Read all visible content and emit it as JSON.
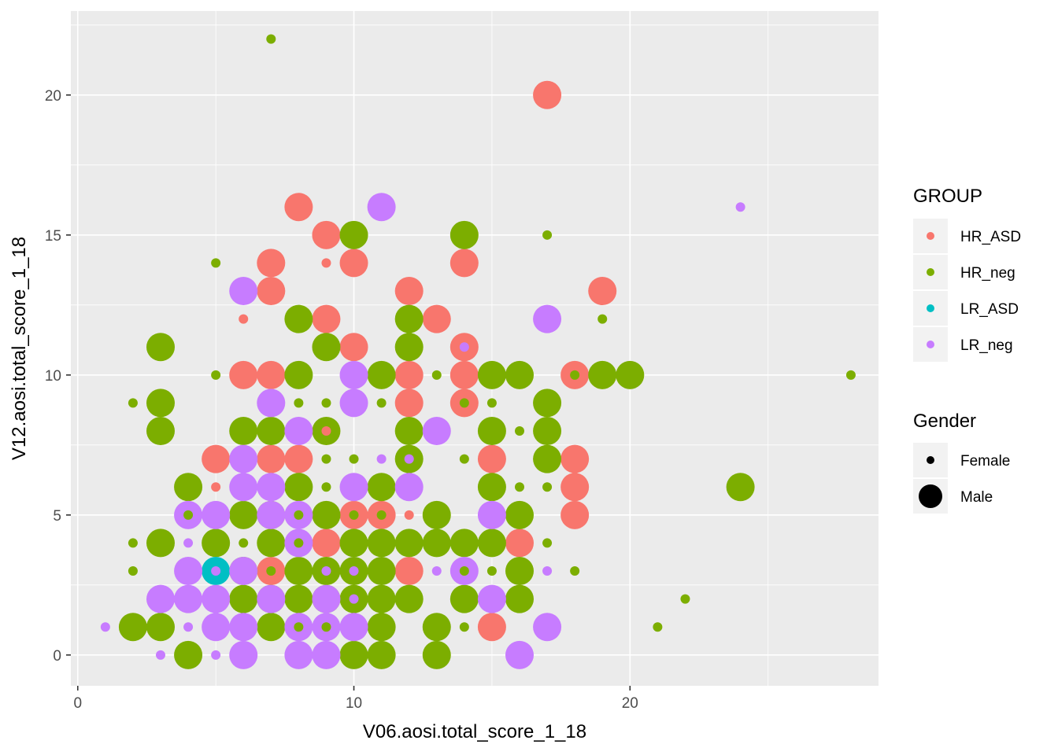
{
  "chart_data": {
    "type": "scatter",
    "xlabel": "V06.aosi.total_score_1_18",
    "ylabel": "V12.aosi.total_score_1_18",
    "xlim": [
      -0.25,
      29
    ],
    "ylim": [
      -1.1,
      23
    ],
    "x_ticks": [
      0,
      10,
      20
    ],
    "y_ticks": [
      0,
      5,
      10,
      15,
      20
    ],
    "grid": true,
    "colors": {
      "HR_ASD": "#F8766D",
      "HR_neg": "#7CAE00",
      "LR_ASD": "#00BFC4",
      "LR_neg": "#C77CFF"
    },
    "legend": {
      "position": "right",
      "group_title": "GROUP",
      "group_entries": [
        "HR_ASD",
        "HR_neg",
        "LR_ASD",
        "LR_neg"
      ],
      "size_title": "Gender",
      "size_entries": [
        "Female",
        "Male"
      ]
    },
    "series": [
      {
        "name": "HR_ASD",
        "points": [
          {
            "x": 17,
            "y": 20,
            "g": "Male"
          },
          {
            "x": 8,
            "y": 16,
            "g": "Male"
          },
          {
            "x": 9,
            "y": 15,
            "g": "Male"
          },
          {
            "x": 7,
            "y": 14,
            "g": "Male"
          },
          {
            "x": 10,
            "y": 14,
            "g": "Male"
          },
          {
            "x": 14,
            "y": 14,
            "g": "Male"
          },
          {
            "x": 9,
            "y": 14,
            "g": "Female"
          },
          {
            "x": 7,
            "y": 13,
            "g": "Male"
          },
          {
            "x": 12,
            "y": 13,
            "g": "Male"
          },
          {
            "x": 19,
            "y": 13,
            "g": "Male"
          },
          {
            "x": 6,
            "y": 12,
            "g": "Female"
          },
          {
            "x": 9,
            "y": 12,
            "g": "Male"
          },
          {
            "x": 13,
            "y": 12,
            "g": "Male"
          },
          {
            "x": 10,
            "y": 11,
            "g": "Male"
          },
          {
            "x": 14,
            "y": 11,
            "g": "Male"
          },
          {
            "x": 6,
            "y": 10,
            "g": "Male"
          },
          {
            "x": 7,
            "y": 10,
            "g": "Male"
          },
          {
            "x": 12,
            "y": 10,
            "g": "Male"
          },
          {
            "x": 14,
            "y": 10,
            "g": "Male"
          },
          {
            "x": 18,
            "y": 10,
            "g": "Male"
          },
          {
            "x": 12,
            "y": 9,
            "g": "Male"
          },
          {
            "x": 14,
            "y": 9,
            "g": "Male"
          },
          {
            "x": 9,
            "y": 8,
            "g": "Female"
          },
          {
            "x": 5,
            "y": 7,
            "g": "Male"
          },
          {
            "x": 7,
            "y": 7,
            "g": "Male"
          },
          {
            "x": 8,
            "y": 7,
            "g": "Male"
          },
          {
            "x": 15,
            "y": 7,
            "g": "Male"
          },
          {
            "x": 18,
            "y": 7,
            "g": "Male"
          },
          {
            "x": 5,
            "y": 6,
            "g": "Female"
          },
          {
            "x": 18,
            "y": 6,
            "g": "Male"
          },
          {
            "x": 10,
            "y": 5,
            "g": "Male"
          },
          {
            "x": 11,
            "y": 5,
            "g": "Male"
          },
          {
            "x": 12,
            "y": 5,
            "g": "Female"
          },
          {
            "x": 18,
            "y": 5,
            "g": "Male"
          },
          {
            "x": 9,
            "y": 4,
            "g": "Male"
          },
          {
            "x": 16,
            "y": 4,
            "g": "Male"
          },
          {
            "x": 7,
            "y": 3,
            "g": "Male"
          },
          {
            "x": 12,
            "y": 3,
            "g": "Male"
          },
          {
            "x": 15,
            "y": 1,
            "g": "Male"
          }
        ]
      },
      {
        "name": "HR_neg",
        "points": [
          {
            "x": 7,
            "y": 22,
            "g": "Female"
          },
          {
            "x": 10,
            "y": 15,
            "g": "Male"
          },
          {
            "x": 14,
            "y": 15,
            "g": "Male"
          },
          {
            "x": 17,
            "y": 15,
            "g": "Female"
          },
          {
            "x": 5,
            "y": 14,
            "g": "Female"
          },
          {
            "x": 8,
            "y": 12,
            "g": "Male"
          },
          {
            "x": 12,
            "y": 12,
            "g": "Male"
          },
          {
            "x": 19,
            "y": 12,
            "g": "Female"
          },
          {
            "x": 3,
            "y": 11,
            "g": "Male"
          },
          {
            "x": 9,
            "y": 11,
            "g": "Male"
          },
          {
            "x": 12,
            "y": 11,
            "g": "Male"
          },
          {
            "x": 5,
            "y": 10,
            "g": "Female"
          },
          {
            "x": 8,
            "y": 10,
            "g": "Male"
          },
          {
            "x": 11,
            "y": 10,
            "g": "Male"
          },
          {
            "x": 13,
            "y": 10,
            "g": "Female"
          },
          {
            "x": 15,
            "y": 10,
            "g": "Male"
          },
          {
            "x": 16,
            "y": 10,
            "g": "Male"
          },
          {
            "x": 18,
            "y": 10,
            "g": "Female"
          },
          {
            "x": 19,
            "y": 10,
            "g": "Male"
          },
          {
            "x": 20,
            "y": 10,
            "g": "Male"
          },
          {
            "x": 28,
            "y": 10,
            "g": "Female"
          },
          {
            "x": 2,
            "y": 9,
            "g": "Female"
          },
          {
            "x": 3,
            "y": 9,
            "g": "Male"
          },
          {
            "x": 8,
            "y": 9,
            "g": "Female"
          },
          {
            "x": 9,
            "y": 9,
            "g": "Female"
          },
          {
            "x": 11,
            "y": 9,
            "g": "Female"
          },
          {
            "x": 14,
            "y": 9,
            "g": "Female"
          },
          {
            "x": 15,
            "y": 9,
            "g": "Female"
          },
          {
            "x": 17,
            "y": 9,
            "g": "Male"
          },
          {
            "x": 3,
            "y": 8,
            "g": "Male"
          },
          {
            "x": 6,
            "y": 8,
            "g": "Male"
          },
          {
            "x": 7,
            "y": 8,
            "g": "Male"
          },
          {
            "x": 9,
            "y": 8,
            "g": "Male"
          },
          {
            "x": 12,
            "y": 8,
            "g": "Male"
          },
          {
            "x": 15,
            "y": 8,
            "g": "Male"
          },
          {
            "x": 16,
            "y": 8,
            "g": "Female"
          },
          {
            "x": 17,
            "y": 8,
            "g": "Male"
          },
          {
            "x": 9,
            "y": 7,
            "g": "Female"
          },
          {
            "x": 10,
            "y": 7,
            "g": "Female"
          },
          {
            "x": 12,
            "y": 7,
            "g": "Male"
          },
          {
            "x": 14,
            "y": 7,
            "g": "Female"
          },
          {
            "x": 17,
            "y": 7,
            "g": "Male"
          },
          {
            "x": 4,
            "y": 6,
            "g": "Male"
          },
          {
            "x": 8,
            "y": 6,
            "g": "Male"
          },
          {
            "x": 9,
            "y": 6,
            "g": "Female"
          },
          {
            "x": 11,
            "y": 6,
            "g": "Male"
          },
          {
            "x": 15,
            "y": 6,
            "g": "Male"
          },
          {
            "x": 16,
            "y": 6,
            "g": "Female"
          },
          {
            "x": 17,
            "y": 6,
            "g": "Female"
          },
          {
            "x": 24,
            "y": 6,
            "g": "Male"
          },
          {
            "x": 4,
            "y": 5,
            "g": "Female"
          },
          {
            "x": 6,
            "y": 5,
            "g": "Male"
          },
          {
            "x": 7,
            "y": 5,
            "g": "Male"
          },
          {
            "x": 8,
            "y": 5,
            "g": "Female"
          },
          {
            "x": 9,
            "y": 5,
            "g": "Male"
          },
          {
            "x": 10,
            "y": 5,
            "g": "Female"
          },
          {
            "x": 11,
            "y": 5,
            "g": "Female"
          },
          {
            "x": 13,
            "y": 5,
            "g": "Male"
          },
          {
            "x": 16,
            "y": 5,
            "g": "Male"
          },
          {
            "x": 2,
            "y": 4,
            "g": "Female"
          },
          {
            "x": 3,
            "y": 4,
            "g": "Male"
          },
          {
            "x": 5,
            "y": 4,
            "g": "Male"
          },
          {
            "x": 6,
            "y": 4,
            "g": "Female"
          },
          {
            "x": 7,
            "y": 4,
            "g": "Male"
          },
          {
            "x": 8,
            "y": 4,
            "g": "Female"
          },
          {
            "x": 10,
            "y": 4,
            "g": "Male"
          },
          {
            "x": 11,
            "y": 4,
            "g": "Male"
          },
          {
            "x": 12,
            "y": 4,
            "g": "Male"
          },
          {
            "x": 13,
            "y": 4,
            "g": "Male"
          },
          {
            "x": 14,
            "y": 4,
            "g": "Male"
          },
          {
            "x": 15,
            "y": 4,
            "g": "Male"
          },
          {
            "x": 17,
            "y": 4,
            "g": "Female"
          },
          {
            "x": 2,
            "y": 3,
            "g": "Female"
          },
          {
            "x": 6,
            "y": 3,
            "g": "Male"
          },
          {
            "x": 7,
            "y": 3,
            "g": "Female"
          },
          {
            "x": 8,
            "y": 3,
            "g": "Male"
          },
          {
            "x": 9,
            "y": 3,
            "g": "Male"
          },
          {
            "x": 10,
            "y": 3,
            "g": "Male"
          },
          {
            "x": 11,
            "y": 3,
            "g": "Male"
          },
          {
            "x": 14,
            "y": 3,
            "g": "Female"
          },
          {
            "x": 15,
            "y": 3,
            "g": "Female"
          },
          {
            "x": 16,
            "y": 3,
            "g": "Male"
          },
          {
            "x": 18,
            "y": 3,
            "g": "Female"
          },
          {
            "x": 6,
            "y": 2,
            "g": "Male"
          },
          {
            "x": 7,
            "y": 2,
            "g": "Male"
          },
          {
            "x": 8,
            "y": 2,
            "g": "Male"
          },
          {
            "x": 9,
            "y": 2,
            "g": "Male"
          },
          {
            "x": 10,
            "y": 2,
            "g": "Male"
          },
          {
            "x": 11,
            "y": 2,
            "g": "Male"
          },
          {
            "x": 12,
            "y": 2,
            "g": "Male"
          },
          {
            "x": 14,
            "y": 2,
            "g": "Male"
          },
          {
            "x": 16,
            "y": 2,
            "g": "Male"
          },
          {
            "x": 22,
            "y": 2,
            "g": "Female"
          },
          {
            "x": 2,
            "y": 1,
            "g": "Male"
          },
          {
            "x": 3,
            "y": 1,
            "g": "Male"
          },
          {
            "x": 7,
            "y": 1,
            "g": "Male"
          },
          {
            "x": 8,
            "y": 1,
            "g": "Female"
          },
          {
            "x": 9,
            "y": 1,
            "g": "Female"
          },
          {
            "x": 11,
            "y": 1,
            "g": "Male"
          },
          {
            "x": 13,
            "y": 1,
            "g": "Male"
          },
          {
            "x": 14,
            "y": 1,
            "g": "Female"
          },
          {
            "x": 21,
            "y": 1,
            "g": "Female"
          },
          {
            "x": 4,
            "y": 0,
            "g": "Male"
          },
          {
            "x": 10,
            "y": 0,
            "g": "Male"
          },
          {
            "x": 11,
            "y": 0,
            "g": "Male"
          },
          {
            "x": 13,
            "y": 0,
            "g": "Male"
          }
        ]
      },
      {
        "name": "LR_ASD",
        "points": [
          {
            "x": 5,
            "y": 3,
            "g": "Male"
          }
        ]
      },
      {
        "name": "LR_neg",
        "points": [
          {
            "x": 11,
            "y": 16,
            "g": "Male"
          },
          {
            "x": 24,
            "y": 16,
            "g": "Female"
          },
          {
            "x": 6,
            "y": 13,
            "g": "Male"
          },
          {
            "x": 17,
            "y": 12,
            "g": "Male"
          },
          {
            "x": 14,
            "y": 11,
            "g": "Female"
          },
          {
            "x": 10,
            "y": 10,
            "g": "Male"
          },
          {
            "x": 7,
            "y": 9,
            "g": "Male"
          },
          {
            "x": 10,
            "y": 9,
            "g": "Male"
          },
          {
            "x": 8,
            "y": 8,
            "g": "Male"
          },
          {
            "x": 13,
            "y": 8,
            "g": "Male"
          },
          {
            "x": 6,
            "y": 7,
            "g": "Male"
          },
          {
            "x": 11,
            "y": 7,
            "g": "Female"
          },
          {
            "x": 12,
            "y": 7,
            "g": "Female"
          },
          {
            "x": 6,
            "y": 6,
            "g": "Male"
          },
          {
            "x": 7,
            "y": 6,
            "g": "Male"
          },
          {
            "x": 10,
            "y": 6,
            "g": "Male"
          },
          {
            "x": 12,
            "y": 6,
            "g": "Male"
          },
          {
            "x": 4,
            "y": 5,
            "g": "Male"
          },
          {
            "x": 5,
            "y": 5,
            "g": "Male"
          },
          {
            "x": 7,
            "y": 5,
            "g": "Male"
          },
          {
            "x": 8,
            "y": 5,
            "g": "Male"
          },
          {
            "x": 15,
            "y": 5,
            "g": "Male"
          },
          {
            "x": 4,
            "y": 4,
            "g": "Female"
          },
          {
            "x": 8,
            "y": 4,
            "g": "Male"
          },
          {
            "x": 4,
            "y": 3,
            "g": "Male"
          },
          {
            "x": 5,
            "y": 3,
            "g": "Female"
          },
          {
            "x": 6,
            "y": 3,
            "g": "Male"
          },
          {
            "x": 9,
            "y": 3,
            "g": "Female"
          },
          {
            "x": 10,
            "y": 3,
            "g": "Female"
          },
          {
            "x": 13,
            "y": 3,
            "g": "Female"
          },
          {
            "x": 14,
            "y": 3,
            "g": "Male"
          },
          {
            "x": 17,
            "y": 3,
            "g": "Female"
          },
          {
            "x": 3,
            "y": 2,
            "g": "Male"
          },
          {
            "x": 4,
            "y": 2,
            "g": "Male"
          },
          {
            "x": 5,
            "y": 2,
            "g": "Male"
          },
          {
            "x": 7,
            "y": 2,
            "g": "Male"
          },
          {
            "x": 9,
            "y": 2,
            "g": "Male"
          },
          {
            "x": 10,
            "y": 2,
            "g": "Female"
          },
          {
            "x": 15,
            "y": 2,
            "g": "Male"
          },
          {
            "x": 1,
            "y": 1,
            "g": "Female"
          },
          {
            "x": 4,
            "y": 1,
            "g": "Female"
          },
          {
            "x": 5,
            "y": 1,
            "g": "Male"
          },
          {
            "x": 6,
            "y": 1,
            "g": "Male"
          },
          {
            "x": 8,
            "y": 1,
            "g": "Male"
          },
          {
            "x": 9,
            "y": 1,
            "g": "Male"
          },
          {
            "x": 10,
            "y": 1,
            "g": "Male"
          },
          {
            "x": 17,
            "y": 1,
            "g": "Male"
          },
          {
            "x": 3,
            "y": 0,
            "g": "Female"
          },
          {
            "x": 5,
            "y": 0,
            "g": "Female"
          },
          {
            "x": 6,
            "y": 0,
            "g": "Male"
          },
          {
            "x": 8,
            "y": 0,
            "g": "Male"
          },
          {
            "x": 9,
            "y": 0,
            "g": "Male"
          },
          {
            "x": 16,
            "y": 0,
            "g": "Male"
          }
        ]
      }
    ]
  }
}
